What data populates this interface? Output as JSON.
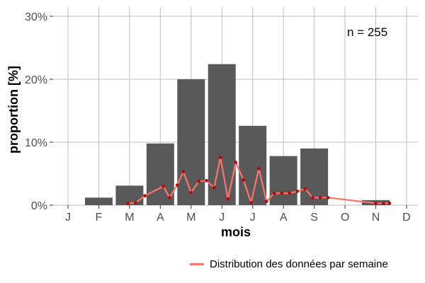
{
  "chart_data": {
    "type": "bar",
    "xlabel": "mois",
    "ylabel": "proportion [%]",
    "categories": [
      "J",
      "F",
      "M",
      "A",
      "M",
      "J",
      "J",
      "A",
      "S",
      "O",
      "N",
      "D"
    ],
    "values": [
      0,
      1.2,
      3.1,
      9.8,
      20.0,
      22.4,
      12.6,
      7.8,
      9.0,
      0,
      0.8,
      0
    ],
    "ylim": [
      0,
      30
    ],
    "y_ticks": [
      "0%",
      "10%",
      "20%",
      "30%"
    ],
    "y_tick_values": [
      0,
      10,
      20,
      30
    ],
    "grid": true,
    "annotation": "n = 255",
    "bar_color": "#595959",
    "line_series": {
      "name": "Distribution des données par semaine",
      "color": "#f8766d",
      "point_color": "#c00000",
      "x": [
        2.95,
        3.2,
        3.5,
        4.1,
        4.3,
        4.55,
        4.75,
        5.0,
        5.25,
        5.5,
        5.75,
        5.95,
        6.2,
        6.45,
        6.7,
        6.95,
        7.2,
        7.45,
        7.7,
        7.95,
        8.2,
        8.45,
        8.7,
        8.95,
        9.2,
        9.45,
        11.0,
        11.25,
        11.45
      ],
      "y": [
        0.3,
        0.4,
        1.5,
        3.0,
        1.2,
        3.2,
        5.3,
        2.0,
        3.8,
        3.9,
        2.8,
        7.6,
        1.0,
        6.8,
        4.0,
        0.4,
        5.8,
        0.6,
        1.9,
        1.9,
        1.9,
        2.2,
        2.6,
        1.2,
        1.2,
        1.2,
        0.3,
        0.3,
        0.3
      ]
    }
  }
}
